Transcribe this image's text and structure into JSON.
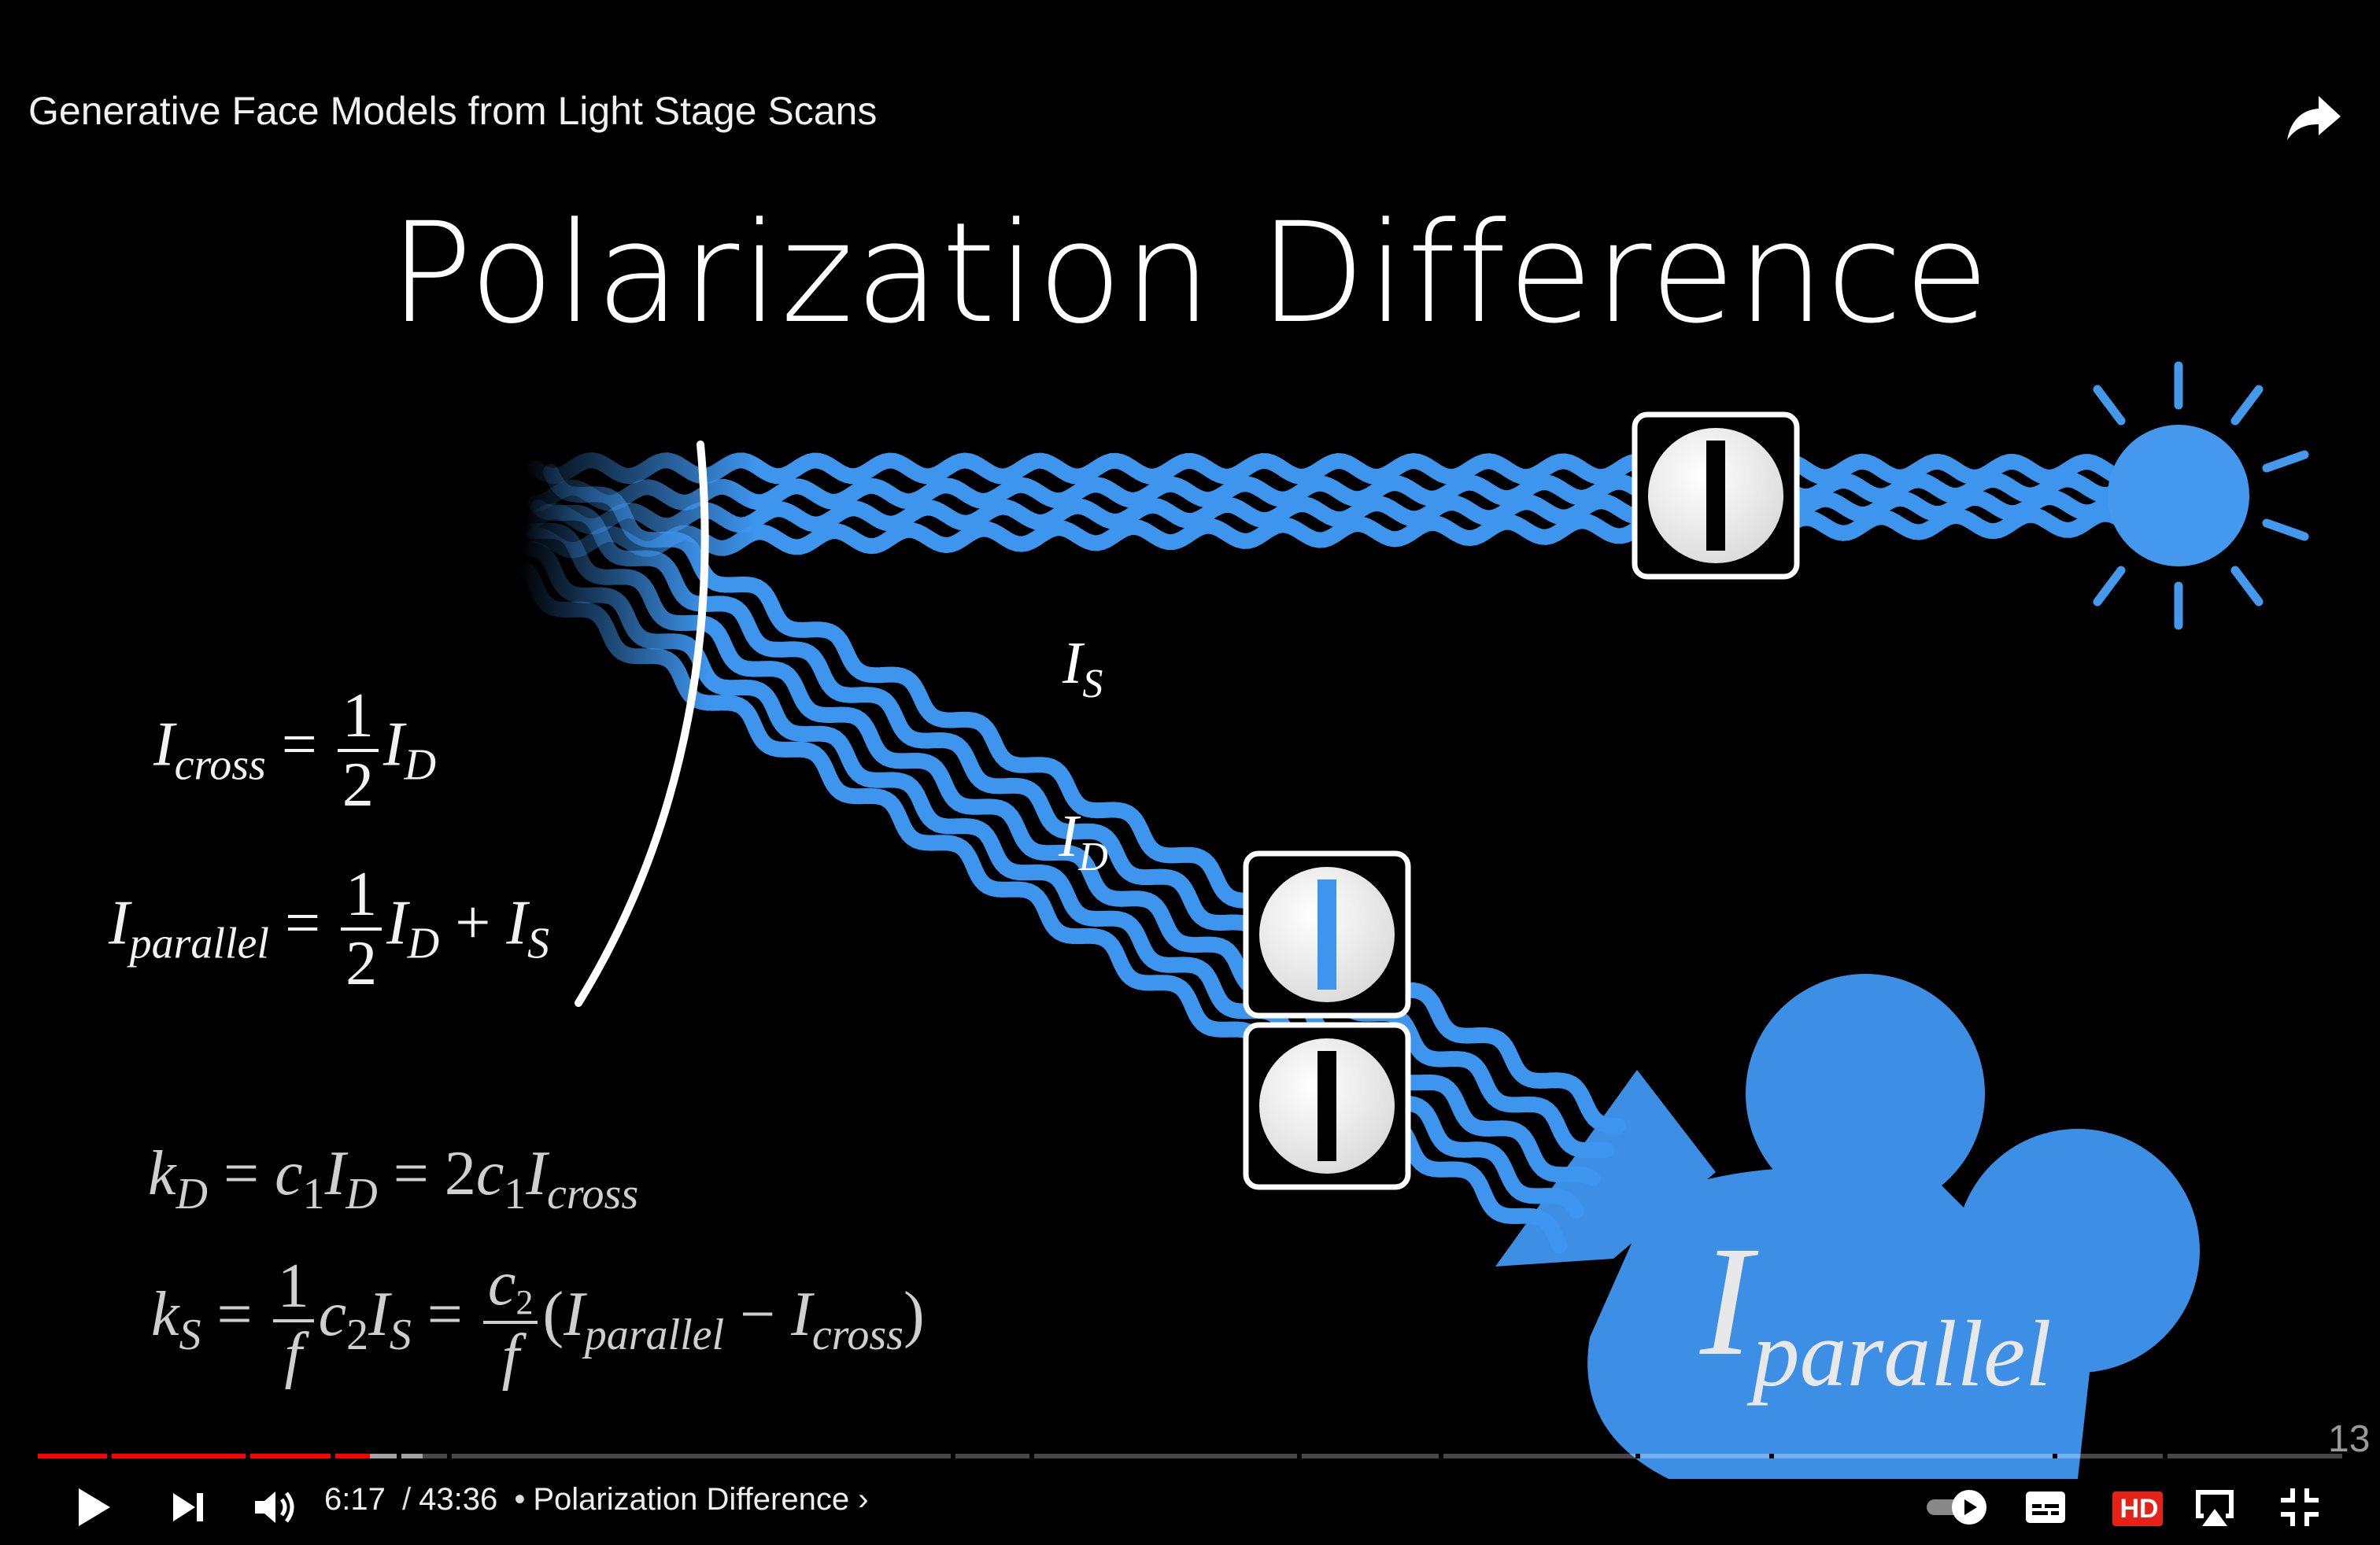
{
  "video": {
    "title": "Generative Face Models from Light Stage Scans",
    "share_icon": "share-arrow-icon"
  },
  "slide": {
    "title": "Polarization Difference",
    "slide_number": "13",
    "beam_labels": {
      "specular": {
        "base": "I",
        "sub": "S"
      },
      "diffuse": {
        "base": "I",
        "sub": "D"
      }
    },
    "camera_label": {
      "base": "I",
      "sub": "parallel"
    },
    "equations": {
      "cross": {
        "lhs": "I",
        "lhs_sub": "cross",
        "op": "=",
        "num": "1",
        "den": "2",
        "rhs": "I",
        "rhs_sub": "D"
      },
      "parallel": {
        "lhs": "I",
        "lhs_sub": "parallel",
        "op": "=",
        "num": "1",
        "den": "2",
        "t1": "I",
        "t1_sub": "D",
        "plus": "+",
        "t2": "I",
        "t2_sub": "S"
      },
      "kd": {
        "lhs": "k",
        "lhs_sub": "D",
        "op1": "=",
        "c": "c",
        "c_sub": "1",
        "i": "I",
        "i_sub": "D",
        "op2": "=",
        "two": "2",
        "c2": "c",
        "c2_sub": "1",
        "i2": "I",
        "i2_sub": "cross"
      },
      "ks": {
        "lhs": "k",
        "lhs_sub": "S",
        "op1": "=",
        "num1": "1",
        "den1": "f",
        "c": "c",
        "c_sub": "2",
        "i": "I",
        "i_sub": "S",
        "op2": "=",
        "num2": "c",
        "num2_sub": "2",
        "den2": "f",
        "open": "(",
        "a": "I",
        "a_sub": "parallel",
        "minus": "−",
        "b": "I",
        "b_sub": "cross",
        "close": ")"
      }
    },
    "colors": {
      "beam": "#3d95ee",
      "light": "#4499ee",
      "camera": "#3d8fe6"
    }
  },
  "player": {
    "current_time": "6:17",
    "duration": "43:36",
    "separator": "/",
    "bullet": "•",
    "chapter": "Polarization Difference",
    "played_fraction": 0.144,
    "buffered_fraction": 0.167,
    "hd_badge": "HD",
    "accent": "#ff0000"
  }
}
